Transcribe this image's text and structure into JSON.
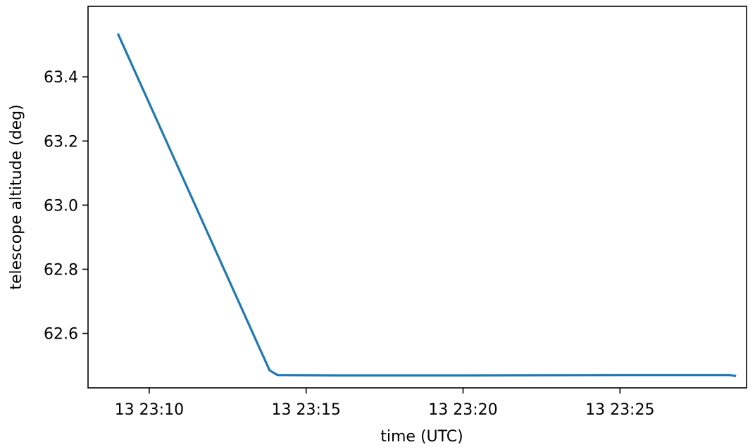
{
  "chart_data": {
    "type": "line",
    "title": "",
    "xlabel": "time (UTC)",
    "ylabel": "telescope altitude (deg)",
    "x_ticks": [
      {
        "value": "13 23:10",
        "label": "13 23:10"
      },
      {
        "value": "13 23:15",
        "label": "13 23:15"
      },
      {
        "value": "13 23:20",
        "label": "13 23:20"
      },
      {
        "value": "13 23:25",
        "label": "13 23:25"
      }
    ],
    "y_ticks": [
      62.6,
      62.8,
      63.0,
      63.2,
      63.4
    ],
    "y_tick_labels": [
      "62.6",
      "62.8",
      "63.0",
      "63.2",
      "63.4"
    ],
    "xlim": [
      "13 23:08:03",
      "13 23:29:02"
    ],
    "ylim": [
      62.43,
      63.62
    ],
    "grid": false,
    "series": [
      {
        "color": "#1f77b4",
        "x": [
          "13 23:09:00",
          "13 23:13:50",
          "13 23:14:05",
          "13 23:16:00",
          "13 23:20:00",
          "13 23:25:00",
          "13 23:28:30",
          "13 23:28:42"
        ],
        "y": [
          63.535,
          62.485,
          62.47,
          62.469,
          62.469,
          62.47,
          62.47,
          62.467
        ]
      }
    ]
  }
}
